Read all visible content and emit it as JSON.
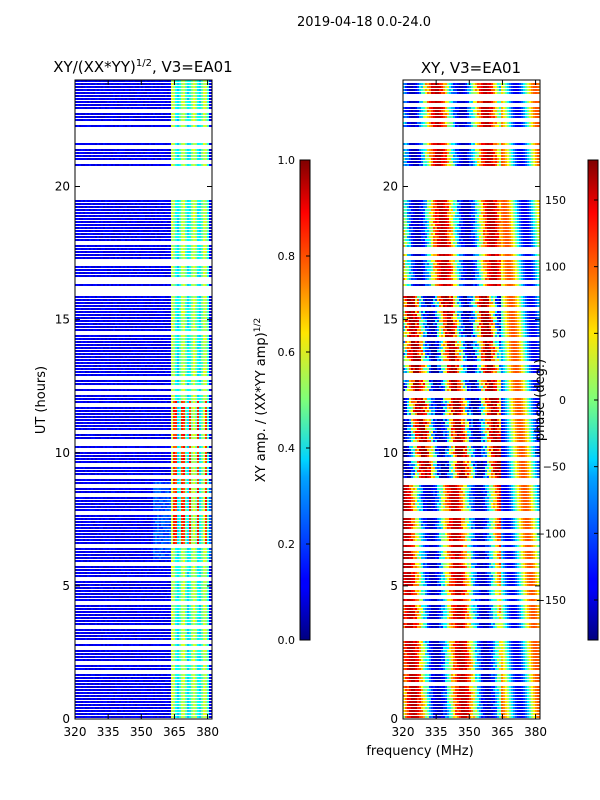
{
  "figure": {
    "suptitle": "2019-04-18 0.0-24.0",
    "xlabel": "frequency (MHz)"
  },
  "chart_data": [
    {
      "type": "heatmap",
      "title_main": "XY/(XX*YY)",
      "title_exp": "1/2",
      "title_suffix": ", V3=EA01",
      "xlabel": "",
      "ylabel": "UT (hours)",
      "xlim": [
        320,
        382
      ],
      "ylim": [
        0,
        24
      ],
      "xticks": [
        320,
        335,
        350,
        365,
        380
      ],
      "yticks": [
        0,
        5,
        10,
        15,
        20
      ],
      "colorbar": {
        "label_main": "XY amp. / (XX*YY amp)",
        "label_exp": "1/2",
        "range": [
          0.0,
          1.0
        ],
        "ticks": [
          "0.0",
          "0.2",
          "0.4",
          "0.6",
          "0.8",
          "1.0"
        ],
        "colormap": "jet"
      },
      "flagged_hours": [
        [
          19.6,
          20.8
        ],
        [
          21.7,
          22.3
        ],
        [
          16.0,
          16.3
        ]
      ],
      "high_band_mhz": [
        363,
        380
      ]
    },
    {
      "type": "heatmap",
      "title_main": "XY, V3=EA01",
      "xlabel": "",
      "ylabel": "",
      "xlim": [
        320,
        382
      ],
      "ylim": [
        0,
        24
      ],
      "xticks": [
        320,
        335,
        350,
        365,
        380
      ],
      "yticks": [
        0,
        5,
        10,
        15,
        20
      ],
      "colorbar": {
        "label_main": "phase (deg.)",
        "range": [
          -180,
          180
        ],
        "ticks": [
          "-150",
          "-100",
          "-50",
          "0",
          "50",
          "100",
          "150"
        ],
        "colormap": "jet"
      },
      "flagged_hours": [
        [
          19.6,
          20.8
        ],
        [
          21.7,
          22.3
        ],
        [
          16.0,
          16.3
        ]
      ]
    }
  ]
}
